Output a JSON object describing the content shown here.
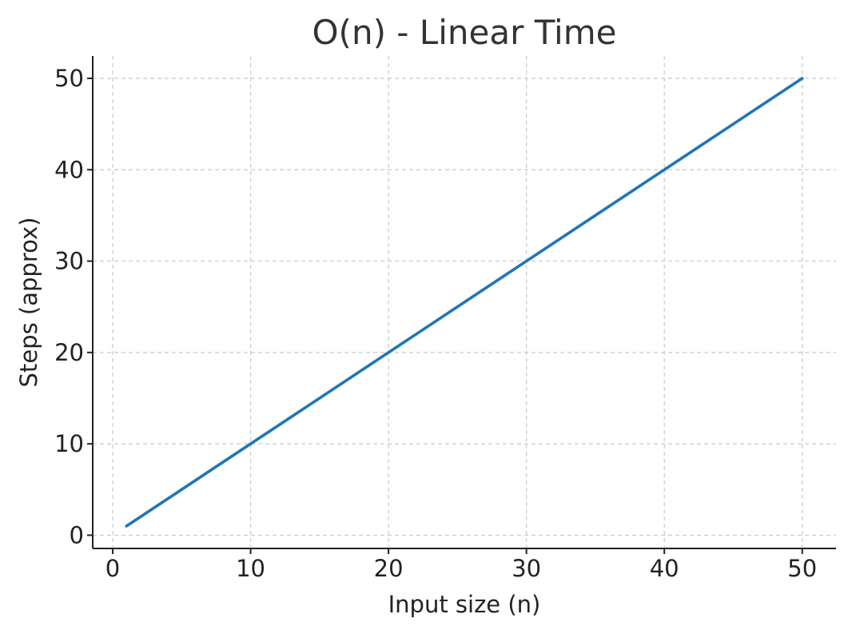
{
  "chart_data": {
    "type": "line",
    "title": "O(n) - Linear Time",
    "xlabel": "Input size (n)",
    "ylabel": "Steps (approx)",
    "xlim": [
      -1.45,
      52.45
    ],
    "ylim": [
      -1.45,
      52.45
    ],
    "xticks": [
      0,
      10,
      20,
      30,
      40,
      50
    ],
    "yticks": [
      0,
      10,
      20,
      30,
      40,
      50
    ],
    "grid": true,
    "grid_style": "dashed",
    "series": [
      {
        "color": "#1f77b4",
        "x": [
          1,
          50
        ],
        "y": [
          1,
          50
        ]
      }
    ]
  }
}
